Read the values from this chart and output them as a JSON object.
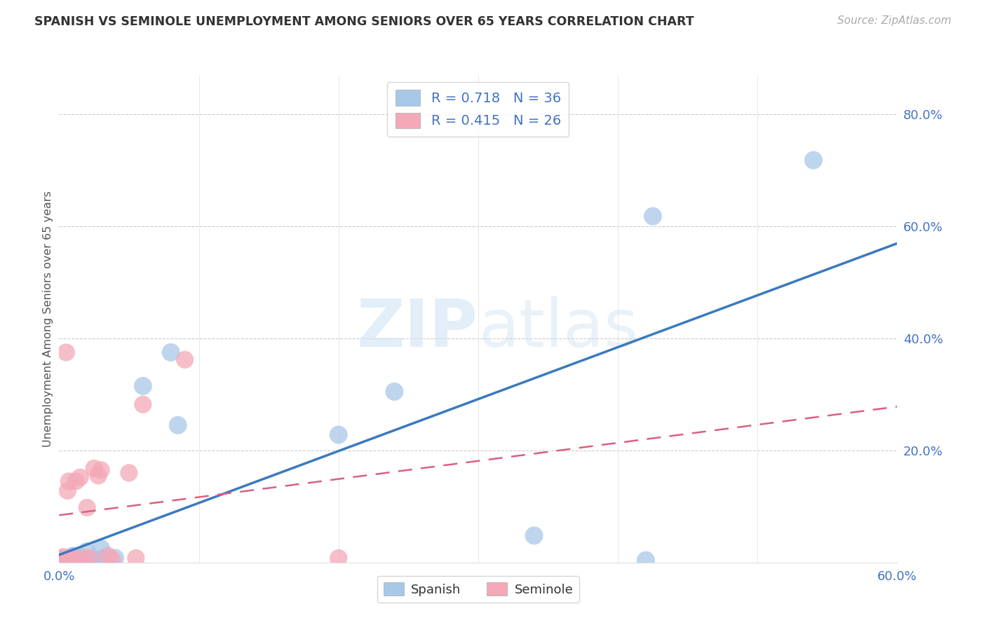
{
  "title": "SPANISH VS SEMINOLE UNEMPLOYMENT AMONG SENIORS OVER 65 YEARS CORRELATION CHART",
  "source": "Source: ZipAtlas.com",
  "ylabel": "Unemployment Among Seniors over 65 years",
  "xlim": [
    0.0,
    0.6
  ],
  "ylim": [
    0.0,
    0.87
  ],
  "spanish_R": 0.718,
  "spanish_N": 36,
  "seminole_R": 0.415,
  "seminole_N": 26,
  "spanish_color": "#a8c8e8",
  "seminole_color": "#f4a8b8",
  "trend_spanish_color": "#3a7abf",
  "trend_seminole_color": "#d96080",
  "label_color": "#4472c4",
  "background_color": "#ffffff",
  "spanish_x": [
    0.001,
    0.002,
    0.002,
    0.003,
    0.003,
    0.004,
    0.005,
    0.005,
    0.006,
    0.007,
    0.008,
    0.009,
    0.01,
    0.011,
    0.012,
    0.013,
    0.015,
    0.016,
    0.018,
    0.02,
    0.022,
    0.025,
    0.028,
    0.03,
    0.032,
    0.035,
    0.04,
    0.06,
    0.08,
    0.085,
    0.2,
    0.24,
    0.34,
    0.42,
    0.425,
    0.54
  ],
  "spanish_y": [
    0.002,
    0.003,
    0.005,
    0.003,
    0.005,
    0.004,
    0.003,
    0.006,
    0.007,
    0.008,
    0.008,
    0.01,
    0.012,
    0.008,
    0.005,
    0.01,
    0.01,
    0.005,
    0.005,
    0.02,
    0.005,
    0.005,
    0.005,
    0.025,
    0.008,
    0.008,
    0.008,
    0.315,
    0.375,
    0.245,
    0.228,
    0.305,
    0.048,
    0.004,
    0.618,
    0.718
  ],
  "seminole_x": [
    0.001,
    0.001,
    0.002,
    0.003,
    0.003,
    0.004,
    0.005,
    0.006,
    0.007,
    0.008,
    0.01,
    0.012,
    0.015,
    0.018,
    0.02,
    0.022,
    0.025,
    0.028,
    0.03,
    0.035,
    0.038,
    0.05,
    0.055,
    0.06,
    0.09,
    0.2
  ],
  "seminole_y": [
    0.003,
    0.005,
    0.005,
    0.008,
    0.01,
    0.005,
    0.375,
    0.128,
    0.145,
    0.008,
    0.008,
    0.145,
    0.152,
    0.008,
    0.098,
    0.008,
    0.168,
    0.155,
    0.165,
    0.012,
    0.005,
    0.16,
    0.008,
    0.282,
    0.362,
    0.008
  ]
}
